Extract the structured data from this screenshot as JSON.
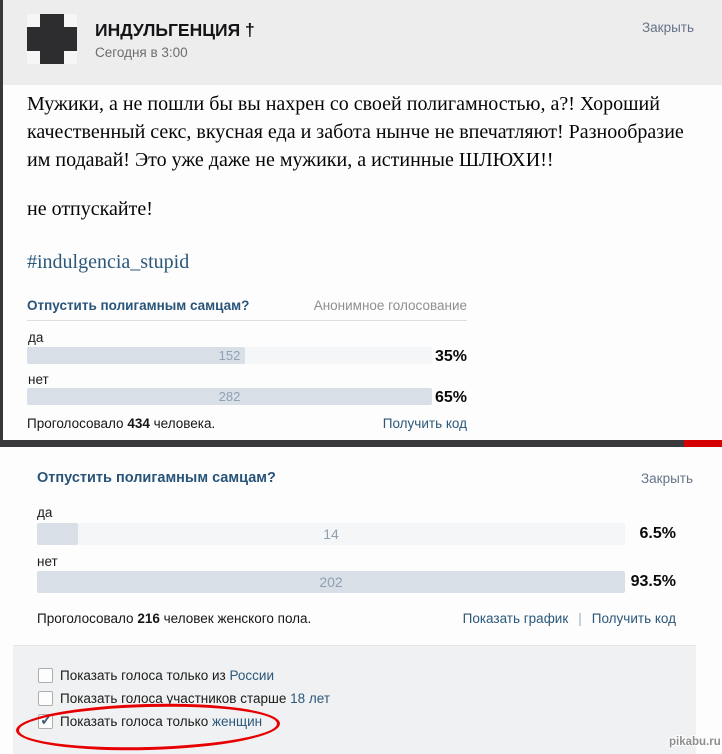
{
  "post": {
    "author": "ИНДУЛЬГЕНЦИЯ †",
    "timestamp": "Сегодня в 3:00",
    "close_label": "Закрыть",
    "paragraph": "Мужики, а не пошли бы вы нахрен со своей полигамностью, а?! Хороший качественный секс, вкусная еда и забота нынче не впечатляют! Разнообразие им подавай! Это уже даже не мужики, а истинные ШЛЮХИ!!",
    "paragraph2": "не отпускайте!",
    "hashtag": "#indulgencia_stupid"
  },
  "poll1": {
    "question": "Отпустить полигамным самцам?",
    "anonymous_label": "Анонимное голосование",
    "options": [
      {
        "label": "да",
        "votes": "152",
        "percent": "35%",
        "fill_pct": 53.9
      },
      {
        "label": "нет",
        "votes": "282",
        "percent": "65%",
        "fill_pct": 100
      }
    ],
    "footer_prefix": "Проголосовало",
    "footer_count": "434",
    "footer_suffix": " человека.",
    "get_code_label": "Получить код"
  },
  "poll2": {
    "question": "Отпустить полигамным самцам?",
    "close_label": "Закрыть",
    "options": [
      {
        "label": "да",
        "votes": "14",
        "percent": "6.5%",
        "fill_pct": 6.9
      },
      {
        "label": "нет",
        "votes": "202",
        "percent": "93.5%",
        "fill_pct": 100
      }
    ],
    "footer_prefix": "Проголосовало",
    "footer_count": "216",
    "footer_suffix": " человек женского пола.",
    "show_chart_label": "Показать график",
    "link_divider": "|",
    "get_code_label": "Получить код"
  },
  "filters": [
    {
      "text": "Показать голоса только из ",
      "link": "России",
      "checked": false
    },
    {
      "text": "Показать голоса участников старше ",
      "link": "18 лет",
      "checked": false
    },
    {
      "text": "Показать голоса только ",
      "link": "женщин",
      "checked": true
    }
  ],
  "icons": {
    "checkmark": "✓"
  },
  "watermark": "pikabu.ru",
  "colors": {
    "header_bg": "#ededee",
    "dark_edge": "#3a3a3c",
    "red_mark": "#e60000",
    "link_blue": "#2b587a",
    "poll_title_blue": "#28547a",
    "bar_fill": "#d8dfe7",
    "bar_track": "#f5f6f8",
    "options_bg": "#f0f1f2"
  }
}
